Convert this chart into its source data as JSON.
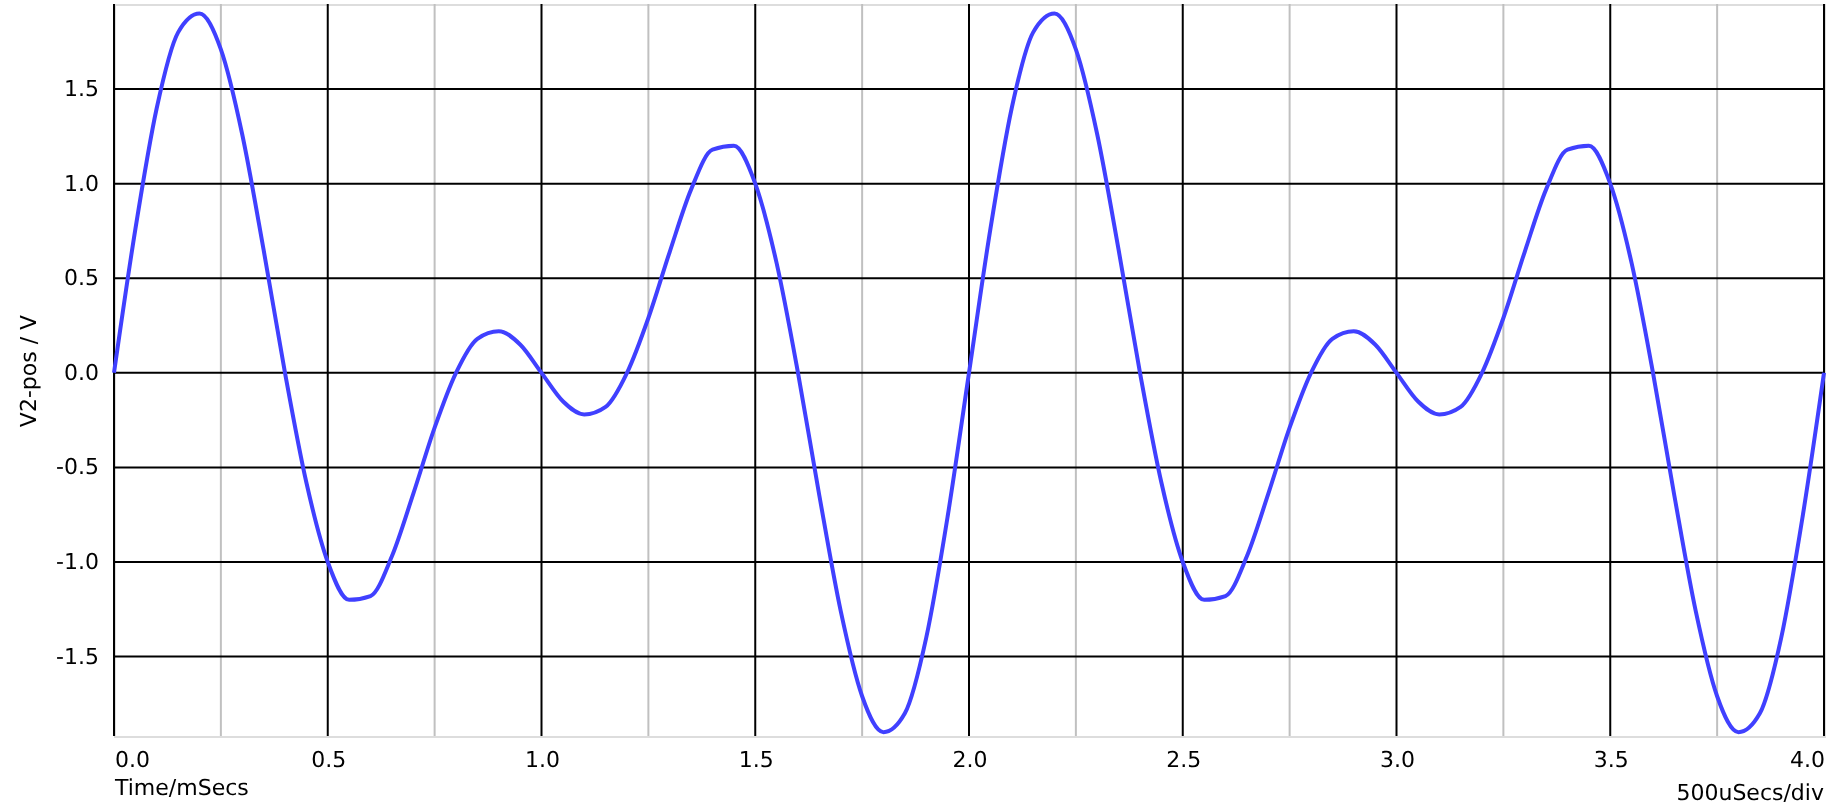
{
  "chart_data": {
    "type": "line",
    "xlabel": "Time/mSecs",
    "ylabel": "V2-pos / V",
    "annotations": [
      "500uSecs/div"
    ],
    "x": [
      0,
      0.05,
      0.1,
      0.15,
      0.2,
      0.25,
      0.3,
      0.35,
      0.4,
      0.45,
      0.5,
      0.55,
      0.6,
      0.65,
      0.7,
      0.75,
      0.8,
      0.85,
      0.9,
      0.95,
      1.0,
      1.05,
      1.1,
      1.15,
      1.2,
      1.25,
      1.3,
      1.35,
      1.4,
      1.45,
      1.5,
      1.55,
      1.6,
      1.65,
      1.7,
      1.75,
      1.8,
      1.85,
      1.9,
      1.95,
      2.0,
      2.05,
      2.1,
      2.15,
      2.2,
      2.25,
      2.3,
      2.35,
      2.4,
      2.45,
      2.5,
      2.55,
      2.6,
      2.65,
      2.7,
      2.75,
      2.8,
      2.85,
      2.9,
      2.95,
      3.0,
      3.05,
      3.1,
      3.15,
      3.2,
      3.25,
      3.3,
      3.35,
      3.4,
      3.45,
      3.5,
      3.55,
      3.6,
      3.65,
      3.7,
      3.75,
      3.8,
      3.85,
      3.9,
      3.95,
      4.0
    ],
    "series": [
      {
        "color": "#4040ff",
        "values": [
          0,
          0.76,
          1.4,
          1.8,
          1.9,
          1.71,
          1.26,
          0.65,
          0,
          -0.58,
          -1.0,
          -1.2,
          -1.18,
          -0.97,
          -0.64,
          -0.29,
          0,
          0.18,
          0.22,
          0.15,
          0,
          -0.15,
          -0.22,
          -0.18,
          0,
          0.29,
          0.64,
          0.97,
          1.18,
          1.2,
          1.0,
          0.58,
          0,
          -0.65,
          -1.26,
          -1.71,
          -1.9,
          -1.8,
          -1.4,
          -0.76,
          0,
          0.76,
          1.4,
          1.8,
          1.9,
          1.71,
          1.26,
          0.65,
          0,
          -0.58,
          -1.0,
          -1.2,
          -1.18,
          -0.97,
          -0.64,
          -0.29,
          0,
          0.18,
          0.22,
          0.15,
          0,
          -0.15,
          -0.22,
          -0.18,
          0,
          0.29,
          0.64,
          0.97,
          1.18,
          1.2,
          1.0,
          0.58,
          0,
          -0.65,
          -1.26,
          -1.71,
          -1.9,
          -1.8,
          -1.4,
          -0.76,
          0
        ]
      }
    ],
    "xlim": [
      0,
      4
    ],
    "ylim": [
      -1.92,
      1.95
    ],
    "xticks": [
      {
        "value": 0,
        "label": "0.0"
      },
      {
        "value": 0.25,
        "label": null
      },
      {
        "value": 0.5,
        "label": "0.5"
      },
      {
        "value": 0.75,
        "label": null
      },
      {
        "value": 1,
        "label": "1.0"
      },
      {
        "value": 1.25,
        "label": null
      },
      {
        "value": 1.5,
        "label": "1.5"
      },
      {
        "value": 1.75,
        "label": null
      },
      {
        "value": 2,
        "label": "2.0"
      },
      {
        "value": 2.25,
        "label": null
      },
      {
        "value": 2.5,
        "label": "2.5"
      },
      {
        "value": 2.75,
        "label": null
      },
      {
        "value": 3,
        "label": "3.0"
      },
      {
        "value": 3.25,
        "label": null
      },
      {
        "value": 3.5,
        "label": "3.5"
      },
      {
        "value": 3.75,
        "label": null
      },
      {
        "value": 4,
        "label": "4.0"
      }
    ],
    "yticks": [
      {
        "value": -1.5,
        "label": "-1.5"
      },
      {
        "value": -1,
        "label": "-1.0"
      },
      {
        "value": -0.5,
        "label": "-0.5"
      },
      {
        "value": 0,
        "label": "0.0"
      },
      {
        "value": 0.5,
        "label": "0.5"
      },
      {
        "value": 1,
        "label": "1.0"
      },
      {
        "value": 1.5,
        "label": "1.5"
      }
    ],
    "grid": true,
    "marker": "none",
    "line_style": "solid"
  }
}
